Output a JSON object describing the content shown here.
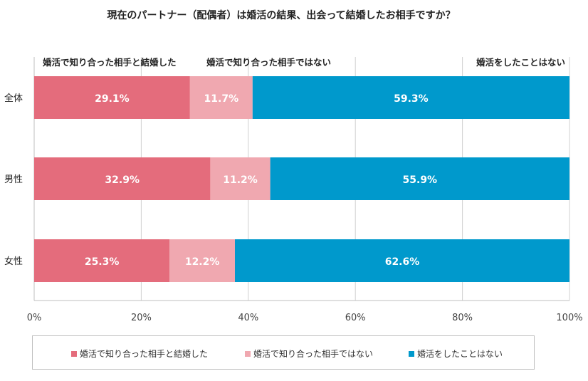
{
  "chart_data": {
    "type": "bar",
    "orientation": "horizontal",
    "stacked": true,
    "title": "現在のパートナー（配偶者）は婚活の結果、出会って結婚したお相手ですか？",
    "categories": [
      "全体",
      "男性",
      "女性"
    ],
    "series": [
      {
        "name": "婚活で知り合った相手と結婚した",
        "color": "#e46c7c",
        "values": [
          29.1,
          32.9,
          25.3
        ],
        "labels": [
          "29.1%",
          "32.9%",
          "25.3%"
        ]
      },
      {
        "name": "婚活で知り合った相手ではない",
        "color": "#f0a8b0",
        "values": [
          11.7,
          11.2,
          12.2
        ],
        "labels": [
          "11.7%",
          "11.2%",
          "12.2%"
        ]
      },
      {
        "name": "婚活をしたことはない",
        "color": "#0099cc",
        "values": [
          59.3,
          55.9,
          62.6
        ],
        "labels": [
          "59.3%",
          "55.9%",
          "62.6%"
        ]
      }
    ],
    "top_labels": [
      "婚活で知り合った相手と結婚した",
      "婚活で知り合った相手ではない",
      "婚活をしたことはない"
    ],
    "xlim": [
      0,
      100
    ],
    "x_ticks": [
      "0%",
      "20%",
      "40%",
      "60%",
      "80%",
      "100%"
    ],
    "grid": true,
    "legend": "bottom"
  }
}
